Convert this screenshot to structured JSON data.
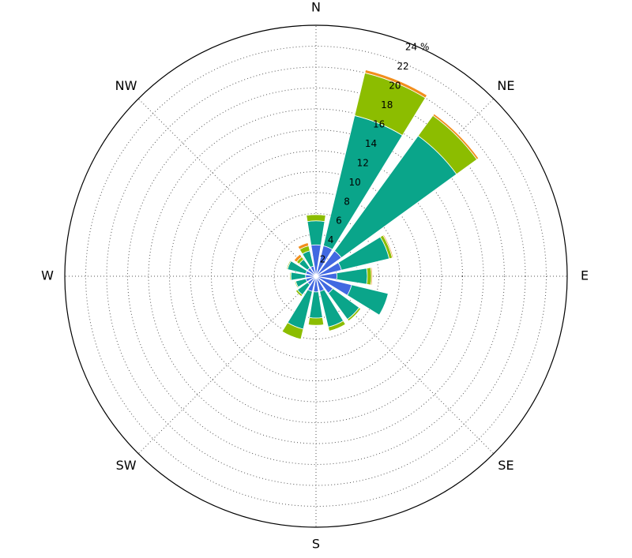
{
  "chart_data": {
    "type": "windrose",
    "categories": [
      "N",
      null,
      "NE",
      null,
      "E",
      null,
      "SE",
      null,
      "S",
      null,
      "SW",
      null,
      "W",
      null,
      "NW",
      null
    ],
    "series": [
      {
        "color": "#4169e1",
        "values": [
          3,
          3,
          3,
          2.5,
          2,
          3.5,
          2,
          1.5,
          1.5,
          1.5,
          1,
          1,
          1,
          1,
          1,
          1
        ]
      },
      {
        "color": "#0aa58a",
        "values": [
          2.3,
          12.8,
          13.6,
          4.7,
          2.9,
          3.6,
          3.1,
          3.5,
          2.5,
          3.7,
          1.2,
          1.0,
          1.4,
          1.8,
          1.0,
          1.5
        ]
      },
      {
        "color": "#8cbd00",
        "values": [
          0.6,
          4.2,
          2.4,
          0.3,
          0.4,
          0,
          0.2,
          0.4,
          0.7,
          1.0,
          0.2,
          0.1,
          0.1,
          0.1,
          0.3,
          0.5
        ]
      },
      {
        "color": "#f28e1c",
        "values": [
          0,
          0.3,
          0.2,
          0.1,
          0.1,
          0,
          0,
          0,
          0,
          0,
          0,
          0,
          0,
          0,
          0.3,
          0.3
        ]
      }
    ],
    "rlim": [
      0,
      24
    ],
    "rticks": [
      2,
      4,
      6,
      8,
      10,
      12,
      14,
      16,
      18,
      20,
      22,
      {
        "value": 24,
        "label": "24 %"
      }
    ],
    "grid": true
  }
}
